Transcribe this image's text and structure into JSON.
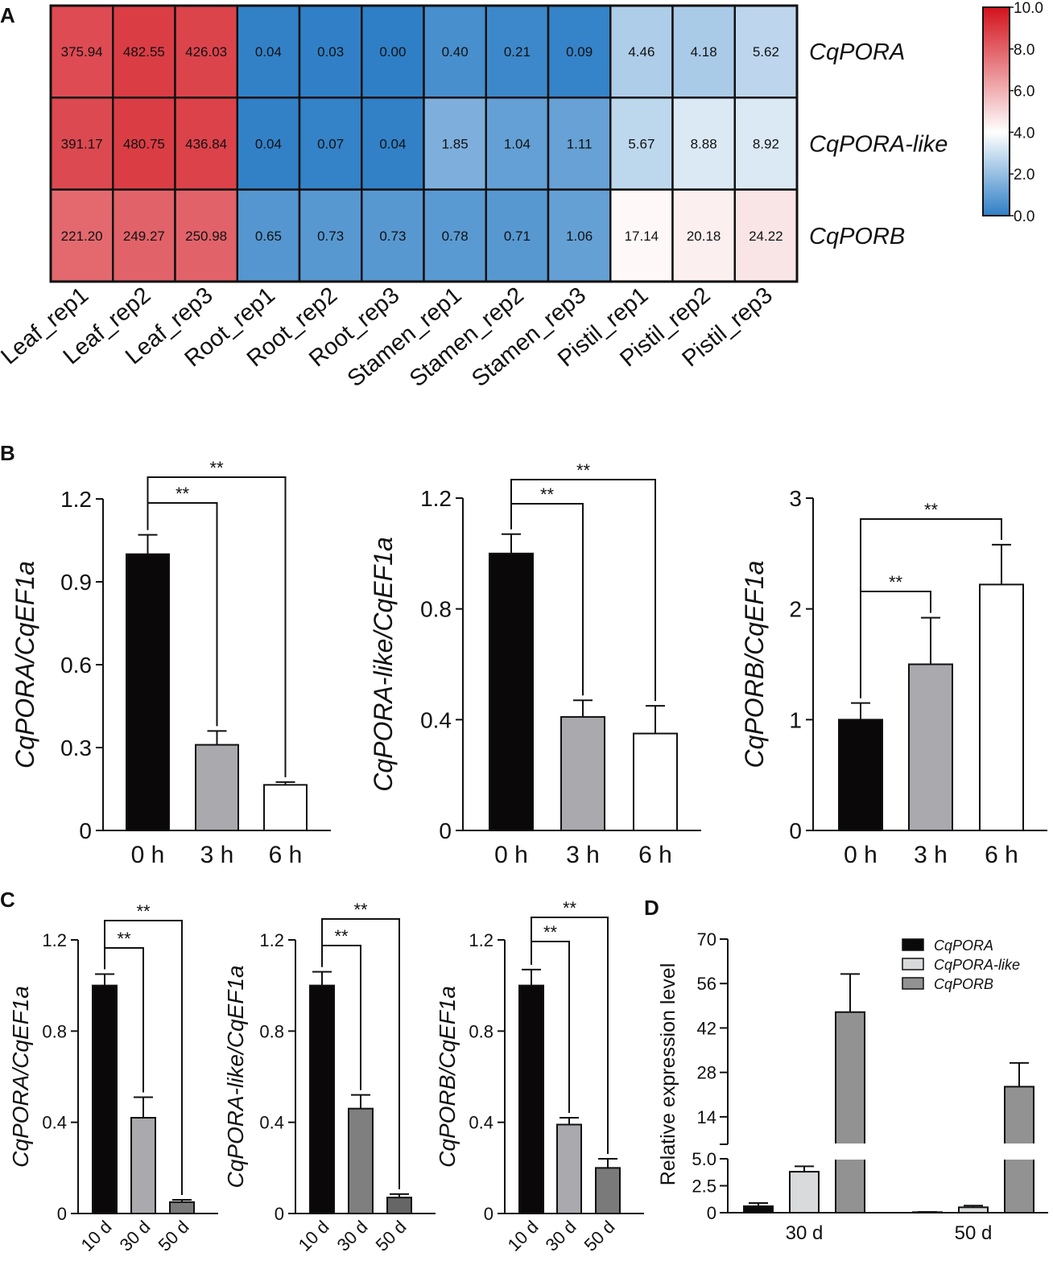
{
  "panel_labels": [
    "A",
    "B",
    "C",
    "D"
  ],
  "chart_data": [
    {
      "type": "heatmap",
      "panel": "A",
      "rows": [
        "CqPORA",
        "CqPORA-like",
        "CqPORB"
      ],
      "columns": [
        "Leaf_rep1",
        "Leaf_rep2",
        "Leaf_rep3",
        "Root_rep1",
        "Root_rep2",
        "Root_rep3",
        "Stamen_rep1",
        "Stamen_rep2",
        "Stamen_rep3",
        "Pistil_rep1",
        "Pistil_rep2",
        "Pistil_rep3"
      ],
      "values": [
        [
          "375.94",
          "482.55",
          "426.03",
          "0.04",
          "0.03",
          "0.00",
          "0.40",
          "0.21",
          "0.09",
          "4.46",
          "4.18",
          "5.62"
        ],
        [
          "391.17",
          "480.75",
          "436.84",
          "0.04",
          "0.07",
          "0.04",
          "1.85",
          "1.04",
          "1.11",
          "5.67",
          "8.88",
          "8.92"
        ],
        [
          "221.20",
          "249.27",
          "250.98",
          "0.65",
          "0.73",
          "0.73",
          "0.78",
          "0.71",
          "1.06",
          "17.14",
          "20.18",
          "24.22"
        ]
      ],
      "color_scale": {
        "transform": "log2(x+1)",
        "range": [
          0,
          10
        ],
        "ticks": [
          "10.0",
          "8.0",
          "6.0",
          "4.0",
          "2.0",
          "0.0"
        ],
        "low": "#2f7fc6",
        "mid": "#ffffff",
        "high": "#d3121c",
        "mid_value": 4
      }
    },
    {
      "type": "bar",
      "panel": "B",
      "ylabel": "CqPORA/CqEF1a",
      "ylim": [
        0,
        1.2
      ],
      "yticks": [
        "0",
        "0.3",
        "0.6",
        "0.9",
        "1.2"
      ],
      "categories": [
        "0 h",
        "3 h",
        "6 h"
      ],
      "values": [
        1.0,
        0.31,
        0.165
      ],
      "errors": [
        0.07,
        0.05,
        0.01
      ],
      "colors": [
        "#0a0808",
        "#a9a9ae",
        "#ffffff"
      ],
      "significance": [
        {
          "from": 0,
          "to": 1,
          "label": "**"
        },
        {
          "from": 0,
          "to": 2,
          "label": "**"
        }
      ]
    },
    {
      "type": "bar",
      "panel": "B",
      "ylabel": "CqPORA-like/CqEF1a",
      "ylim": [
        0,
        1.2
      ],
      "yticks": [
        "0",
        "0.4",
        "0.8",
        "1.2"
      ],
      "categories": [
        "0 h",
        "3 h",
        "6 h"
      ],
      "values": [
        1.0,
        0.41,
        0.35
      ],
      "errors": [
        0.07,
        0.06,
        0.1
      ],
      "colors": [
        "#0a0808",
        "#a9a9ae",
        "#ffffff"
      ],
      "significance": [
        {
          "from": 0,
          "to": 1,
          "label": "**"
        },
        {
          "from": 0,
          "to": 2,
          "label": "**"
        }
      ]
    },
    {
      "type": "bar",
      "panel": "B",
      "ylabel": "CqPORB/CqEF1a",
      "ylim": [
        0,
        3
      ],
      "yticks": [
        "0",
        "1",
        "2",
        "3"
      ],
      "categories": [
        "0 h",
        "3 h",
        "6 h"
      ],
      "values": [
        1.0,
        1.5,
        2.22
      ],
      "errors": [
        0.15,
        0.42,
        0.36
      ],
      "colors": [
        "#0a0808",
        "#a9a9ae",
        "#ffffff"
      ],
      "significance": [
        {
          "from": 0,
          "to": 1,
          "label": "**"
        },
        {
          "from": 0,
          "to": 2,
          "label": "**"
        }
      ]
    },
    {
      "type": "bar",
      "panel": "C",
      "ylabel": "CqPORA/CqEF1a",
      "ylim": [
        0,
        1.2
      ],
      "yticks": [
        "0",
        "0.4",
        "0.8",
        "1.2"
      ],
      "categories": [
        "10 d",
        "30 d",
        "50 d"
      ],
      "values": [
        1.0,
        0.42,
        0.05
      ],
      "errors": [
        0.05,
        0.09,
        0.01
      ],
      "colors": [
        "#0a0808",
        "#a9a9ae",
        "#7a7a7a"
      ],
      "significance": [
        {
          "from": 0,
          "to": 1,
          "label": "**"
        },
        {
          "from": 0,
          "to": 2,
          "label": "**"
        }
      ]
    },
    {
      "type": "bar",
      "panel": "C",
      "ylabel": "CqPORA-like/CqEF1a",
      "ylim": [
        0,
        1.2
      ],
      "yticks": [
        "0",
        "0.4",
        "0.8",
        "1.2"
      ],
      "categories": [
        "10 d",
        "30 d",
        "50 d"
      ],
      "values": [
        1.0,
        0.46,
        0.07
      ],
      "errors": [
        0.06,
        0.06,
        0.015
      ],
      "colors": [
        "#0a0808",
        "#7f7f7f",
        "#666666"
      ],
      "significance": [
        {
          "from": 0,
          "to": 1,
          "label": "**"
        },
        {
          "from": 0,
          "to": 2,
          "label": "**"
        }
      ]
    },
    {
      "type": "bar",
      "panel": "C",
      "ylabel": "CqPORB/CqEF1a",
      "ylim": [
        0,
        1.2
      ],
      "yticks": [
        "0",
        "0.4",
        "0.8",
        "1.2"
      ],
      "categories": [
        "10 d",
        "30 d",
        "50 d"
      ],
      "values": [
        1.0,
        0.39,
        0.2
      ],
      "errors": [
        0.07,
        0.03,
        0.04
      ],
      "colors": [
        "#0a0808",
        "#a9a9ae",
        "#7a7a7a"
      ],
      "significance": [
        {
          "from": 0,
          "to": 1,
          "label": "**"
        },
        {
          "from": 0,
          "to": 2,
          "label": "**"
        }
      ]
    },
    {
      "type": "bar",
      "panel": "D",
      "ylabel": "Relative expression level",
      "ylim_lower": [
        0,
        5.0
      ],
      "ylim_upper": [
        5.35,
        70
      ],
      "yticks_lower": [
        "0",
        "2.5",
        "5.0"
      ],
      "yticks_upper": [
        "14",
        "28",
        "42",
        "56",
        "70"
      ],
      "categories": [
        "30 d",
        "50 d"
      ],
      "legend_position": "top-right",
      "series": [
        {
          "name": "CqPORA",
          "color": "#0a0808",
          "values": [
            0.6,
            0.05
          ],
          "errors": [
            0.3,
            0.02
          ]
        },
        {
          "name": "CqPORA-like",
          "color": "#d9dadb",
          "values": [
            3.8,
            0.5
          ],
          "errors": [
            0.5,
            0.15
          ]
        },
        {
          "name": "CqPORB",
          "color": "#929292",
          "values": [
            47,
            23.5
          ],
          "errors": [
            12,
            7.5
          ]
        }
      ]
    }
  ]
}
